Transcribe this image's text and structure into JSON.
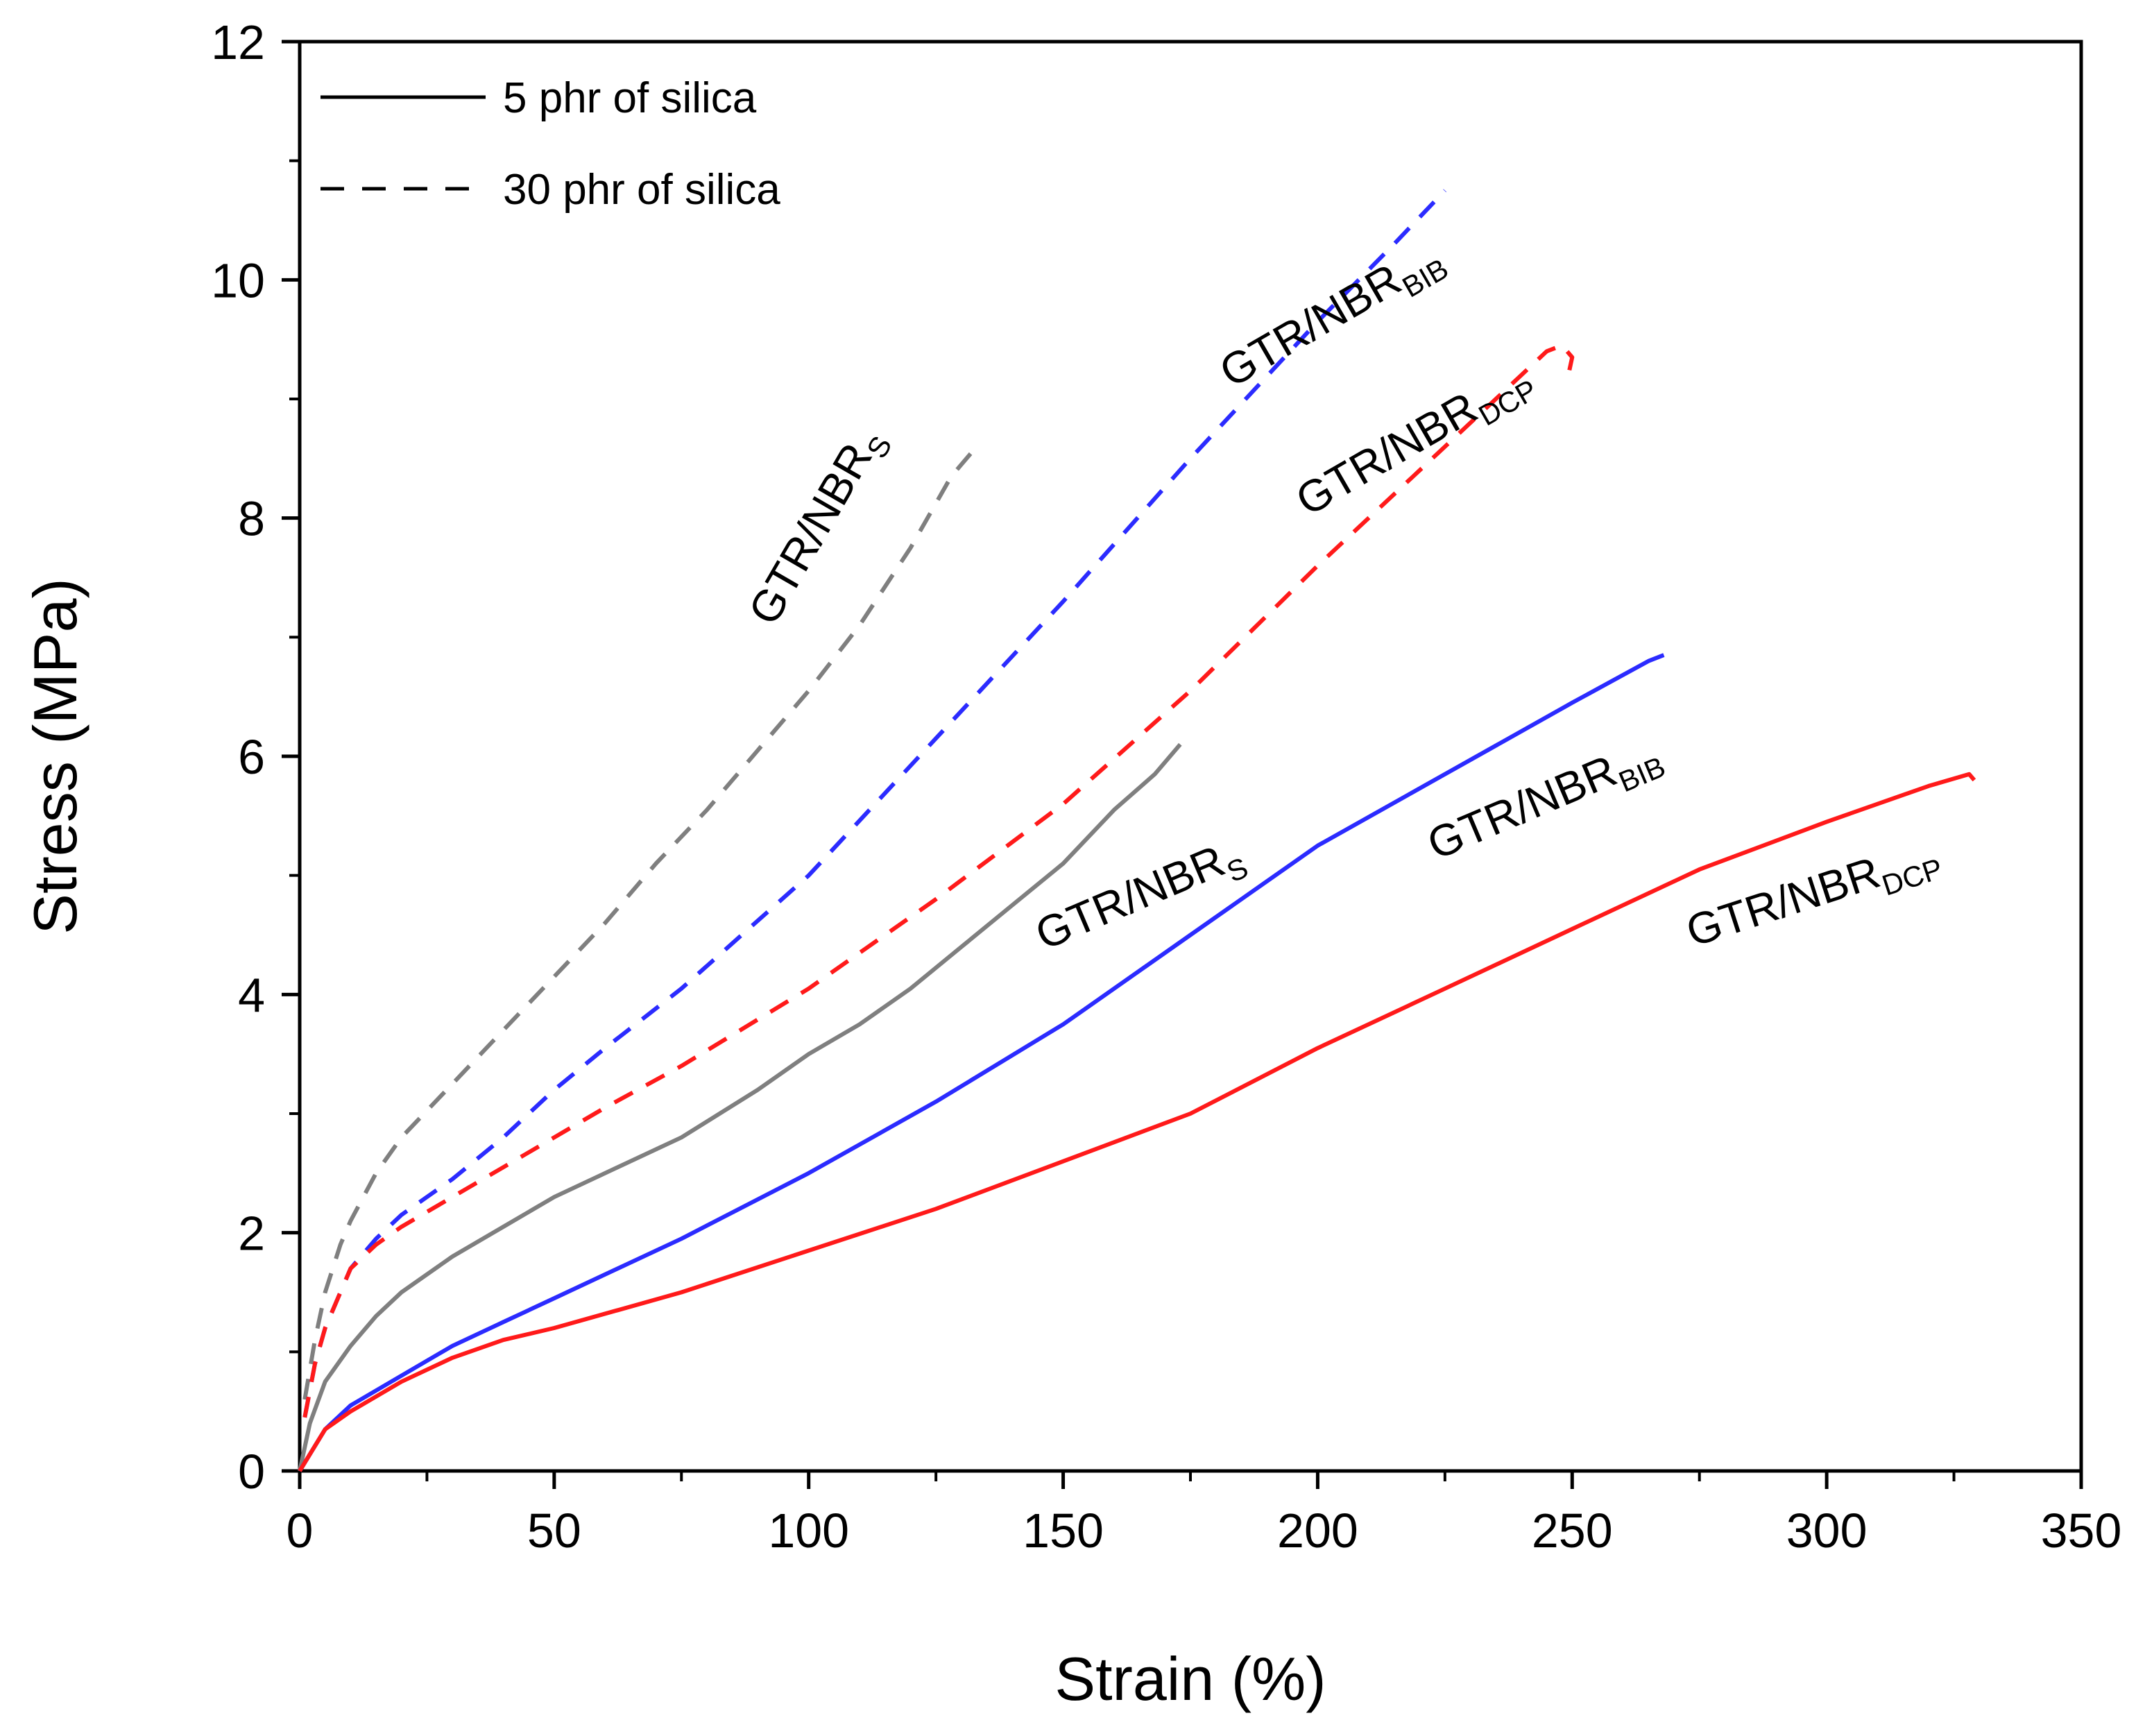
{
  "chart_data": {
    "type": "line",
    "xlabel": "Strain (%)",
    "ylabel": "Stress (MPa)",
    "xlim": [
      0,
      350
    ],
    "ylim": [
      0,
      12
    ],
    "xticks": [
      0,
      50,
      100,
      150,
      200,
      250,
      300,
      350
    ],
    "yticks": [
      0,
      2,
      4,
      6,
      8,
      10,
      12
    ],
    "grid": false,
    "legend": {
      "position": "top-left",
      "entries": [
        {
          "label": "5 phr of silica",
          "style": "solid"
        },
        {
          "label": "30 phr of silica",
          "style": "dashed"
        }
      ]
    },
    "series": [
      {
        "id": "s-solid-gray",
        "color": "#7f7f7f",
        "style": "solid",
        "x": [
          0,
          2,
          5,
          10,
          15,
          20,
          30,
          40,
          50,
          60,
          75,
          90,
          100,
          110,
          120,
          130,
          140,
          150,
          160,
          168,
          173
        ],
        "y": [
          0,
          0.4,
          0.75,
          1.05,
          1.3,
          1.5,
          1.8,
          2.05,
          2.3,
          2.5,
          2.8,
          3.2,
          3.5,
          3.75,
          4.05,
          4.4,
          4.75,
          5.1,
          5.55,
          5.85,
          6.1
        ]
      },
      {
        "id": "s-solid-blue",
        "color": "#2b2bff",
        "style": "solid",
        "x": [
          0,
          5,
          10,
          20,
          30,
          40,
          50,
          75,
          100,
          125,
          150,
          175,
          200,
          225,
          250,
          265,
          268
        ],
        "y": [
          0,
          0.35,
          0.55,
          0.8,
          1.05,
          1.25,
          1.45,
          1.95,
          2.5,
          3.1,
          3.75,
          4.5,
          5.25,
          5.85,
          6.45,
          6.8,
          6.85
        ]
      },
      {
        "id": "s-solid-red",
        "color": "#ff1a1a",
        "style": "solid",
        "x": [
          0,
          5,
          10,
          20,
          30,
          40,
          50,
          75,
          100,
          125,
          150,
          175,
          200,
          225,
          250,
          275,
          300,
          320,
          328,
          329
        ],
        "y": [
          0,
          0.35,
          0.5,
          0.75,
          0.95,
          1.1,
          1.2,
          1.5,
          1.85,
          2.2,
          2.6,
          3.0,
          3.55,
          4.05,
          4.55,
          5.05,
          5.45,
          5.75,
          5.85,
          5.8
        ]
      },
      {
        "id": "s-dash-gray",
        "color": "#7f7f7f",
        "style": "dashed",
        "x": [
          1,
          3,
          5,
          8,
          10,
          15,
          20,
          30,
          40,
          50,
          60,
          70,
          80,
          90,
          100,
          110,
          120,
          128,
          133
        ],
        "y": [
          0.6,
          1.1,
          1.5,
          1.9,
          2.1,
          2.5,
          2.8,
          3.25,
          3.7,
          4.15,
          4.6,
          5.1,
          5.55,
          6.05,
          6.55,
          7.1,
          7.75,
          8.35,
          8.6
        ]
      },
      {
        "id": "s-dash-blue",
        "color": "#2b2bff",
        "style": "dashed",
        "x": [
          1,
          3,
          5,
          8,
          10,
          15,
          20,
          30,
          40,
          50,
          60,
          75,
          100,
          125,
          150,
          175,
          200,
          215,
          225
        ],
        "y": [
          0.45,
          0.9,
          1.2,
          1.5,
          1.7,
          1.95,
          2.15,
          2.45,
          2.8,
          3.2,
          3.55,
          4.05,
          5.0,
          6.15,
          7.3,
          8.5,
          9.65,
          10.3,
          10.75
        ]
      },
      {
        "id": "s-dash-red",
        "color": "#ff1a1a",
        "style": "dashed",
        "x": [
          1,
          3,
          5,
          8,
          10,
          15,
          20,
          30,
          40,
          50,
          60,
          75,
          100,
          125,
          150,
          175,
          200,
          225,
          240,
          245,
          248,
          250,
          249
        ],
        "y": [
          0.45,
          0.9,
          1.2,
          1.5,
          1.7,
          1.9,
          2.05,
          2.3,
          2.55,
          2.8,
          3.05,
          3.4,
          4.05,
          4.8,
          5.6,
          6.55,
          7.6,
          8.6,
          9.2,
          9.4,
          9.45,
          9.35,
          9.15
        ]
      }
    ],
    "annotations": [
      {
        "id": "lab-dash-gray",
        "main": "GTR/NBR",
        "sub": "S"
      },
      {
        "id": "lab-dash-blue",
        "main": "GTR/NBR",
        "sub": "BIB"
      },
      {
        "id": "lab-dash-red",
        "main": "GTR/NBR",
        "sub": "DCP"
      },
      {
        "id": "lab-solid-gray",
        "main": "GTR/NBR",
        "sub": "S"
      },
      {
        "id": "lab-solid-blue",
        "main": "GTR/NBR",
        "sub": "BIB"
      },
      {
        "id": "lab-solid-red",
        "main": "GTR/NBR",
        "sub": "DCP"
      }
    ]
  }
}
